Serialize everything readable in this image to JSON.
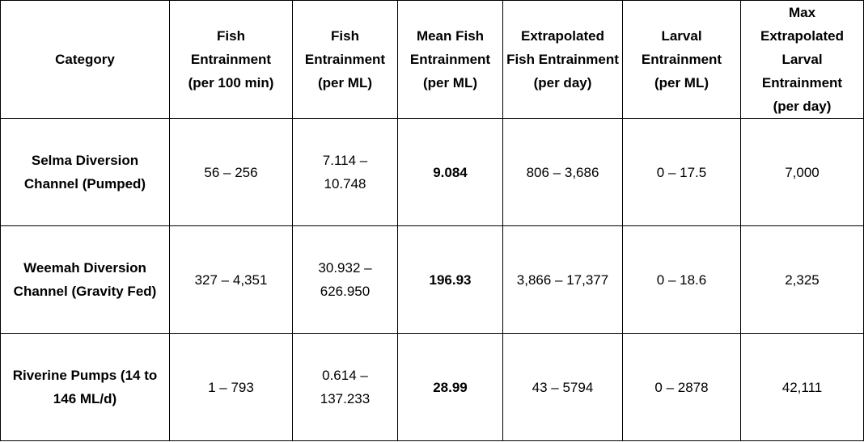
{
  "table": {
    "headers": [
      "Category",
      "Fish\nEntrainment\n(per 100 min)",
      "Fish\nEntrainment\n(per ML)",
      "Mean Fish\nEntrainment\n(per ML)",
      "Extrapolated\nFish Entrainment\n(per day)",
      "Larval\nEntrainment\n(per ML)",
      "Max\nExtrapolated\nLarval\nEntrainment\n(per day)"
    ],
    "rows": [
      [
        "Selma Diversion\nChannel (Pumped)",
        "56 – 256",
        "7.114 –\n10.748",
        "9.084",
        "806 – 3,686",
        "0 – 17.5",
        "7,000"
      ],
      [
        "Weemah Diversion\nChannel (Gravity Fed)",
        "327 – 4,351",
        "30.932 –\n626.950",
        "196.93",
        "3,866 – 17,377",
        "0 – 18.6",
        "2,325"
      ],
      [
        "Riverine Pumps (14 to\n146 ML/d)",
        "1 – 793",
        "0.614 –\n137.233",
        "28.99",
        "43 – 5794",
        "0 – 2878",
        "42,111"
      ]
    ]
  }
}
